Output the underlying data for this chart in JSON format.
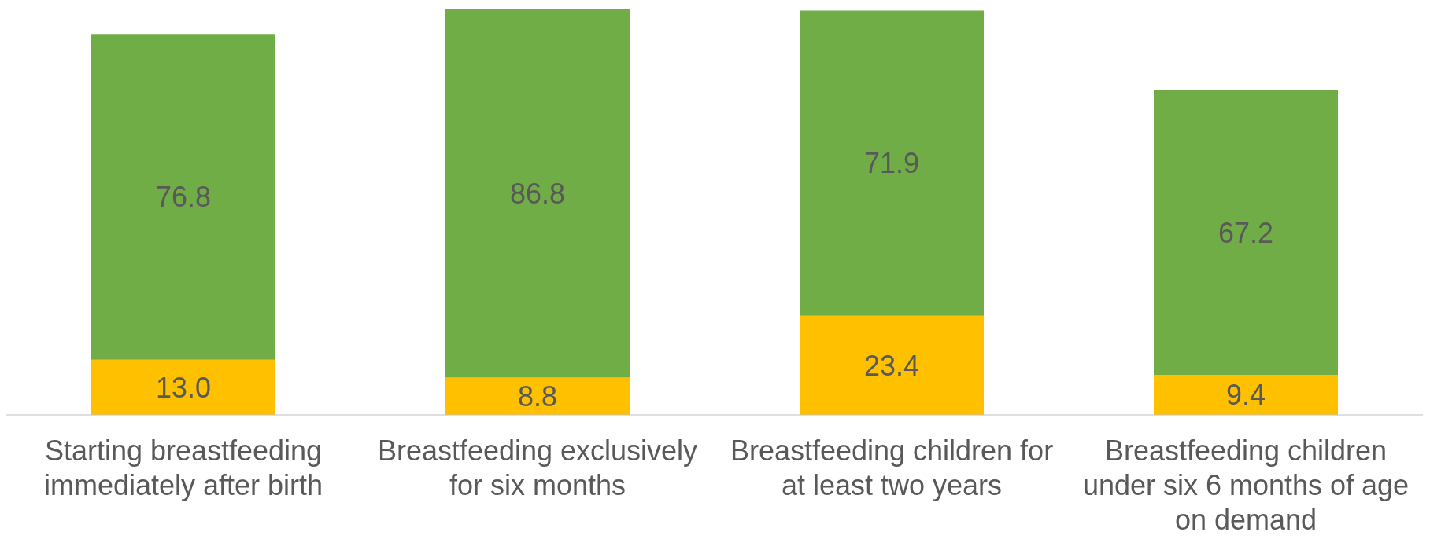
{
  "chart_data": {
    "type": "bar",
    "stacked": true,
    "legend": false,
    "categories": [
      "Starting breastfeeding immediately after birth",
      "Breastfeeding exclusively for six months",
      "Breastfeeding children for at least two years",
      "Breastfeeding children under six 6 months of age on demand"
    ],
    "series": [
      {
        "color": "#ffc000",
        "values": [
          13.0,
          8.8,
          23.4,
          9.4
        ],
        "value_labels": [
          "13.0",
          "8.8",
          "23.4",
          "9.4"
        ]
      },
      {
        "color": "#70ad47",
        "values": [
          76.8,
          86.8,
          71.9,
          67.2
        ],
        "value_labels": [
          "76.8",
          "86.8",
          "71.9",
          "67.2"
        ]
      }
    ]
  }
}
